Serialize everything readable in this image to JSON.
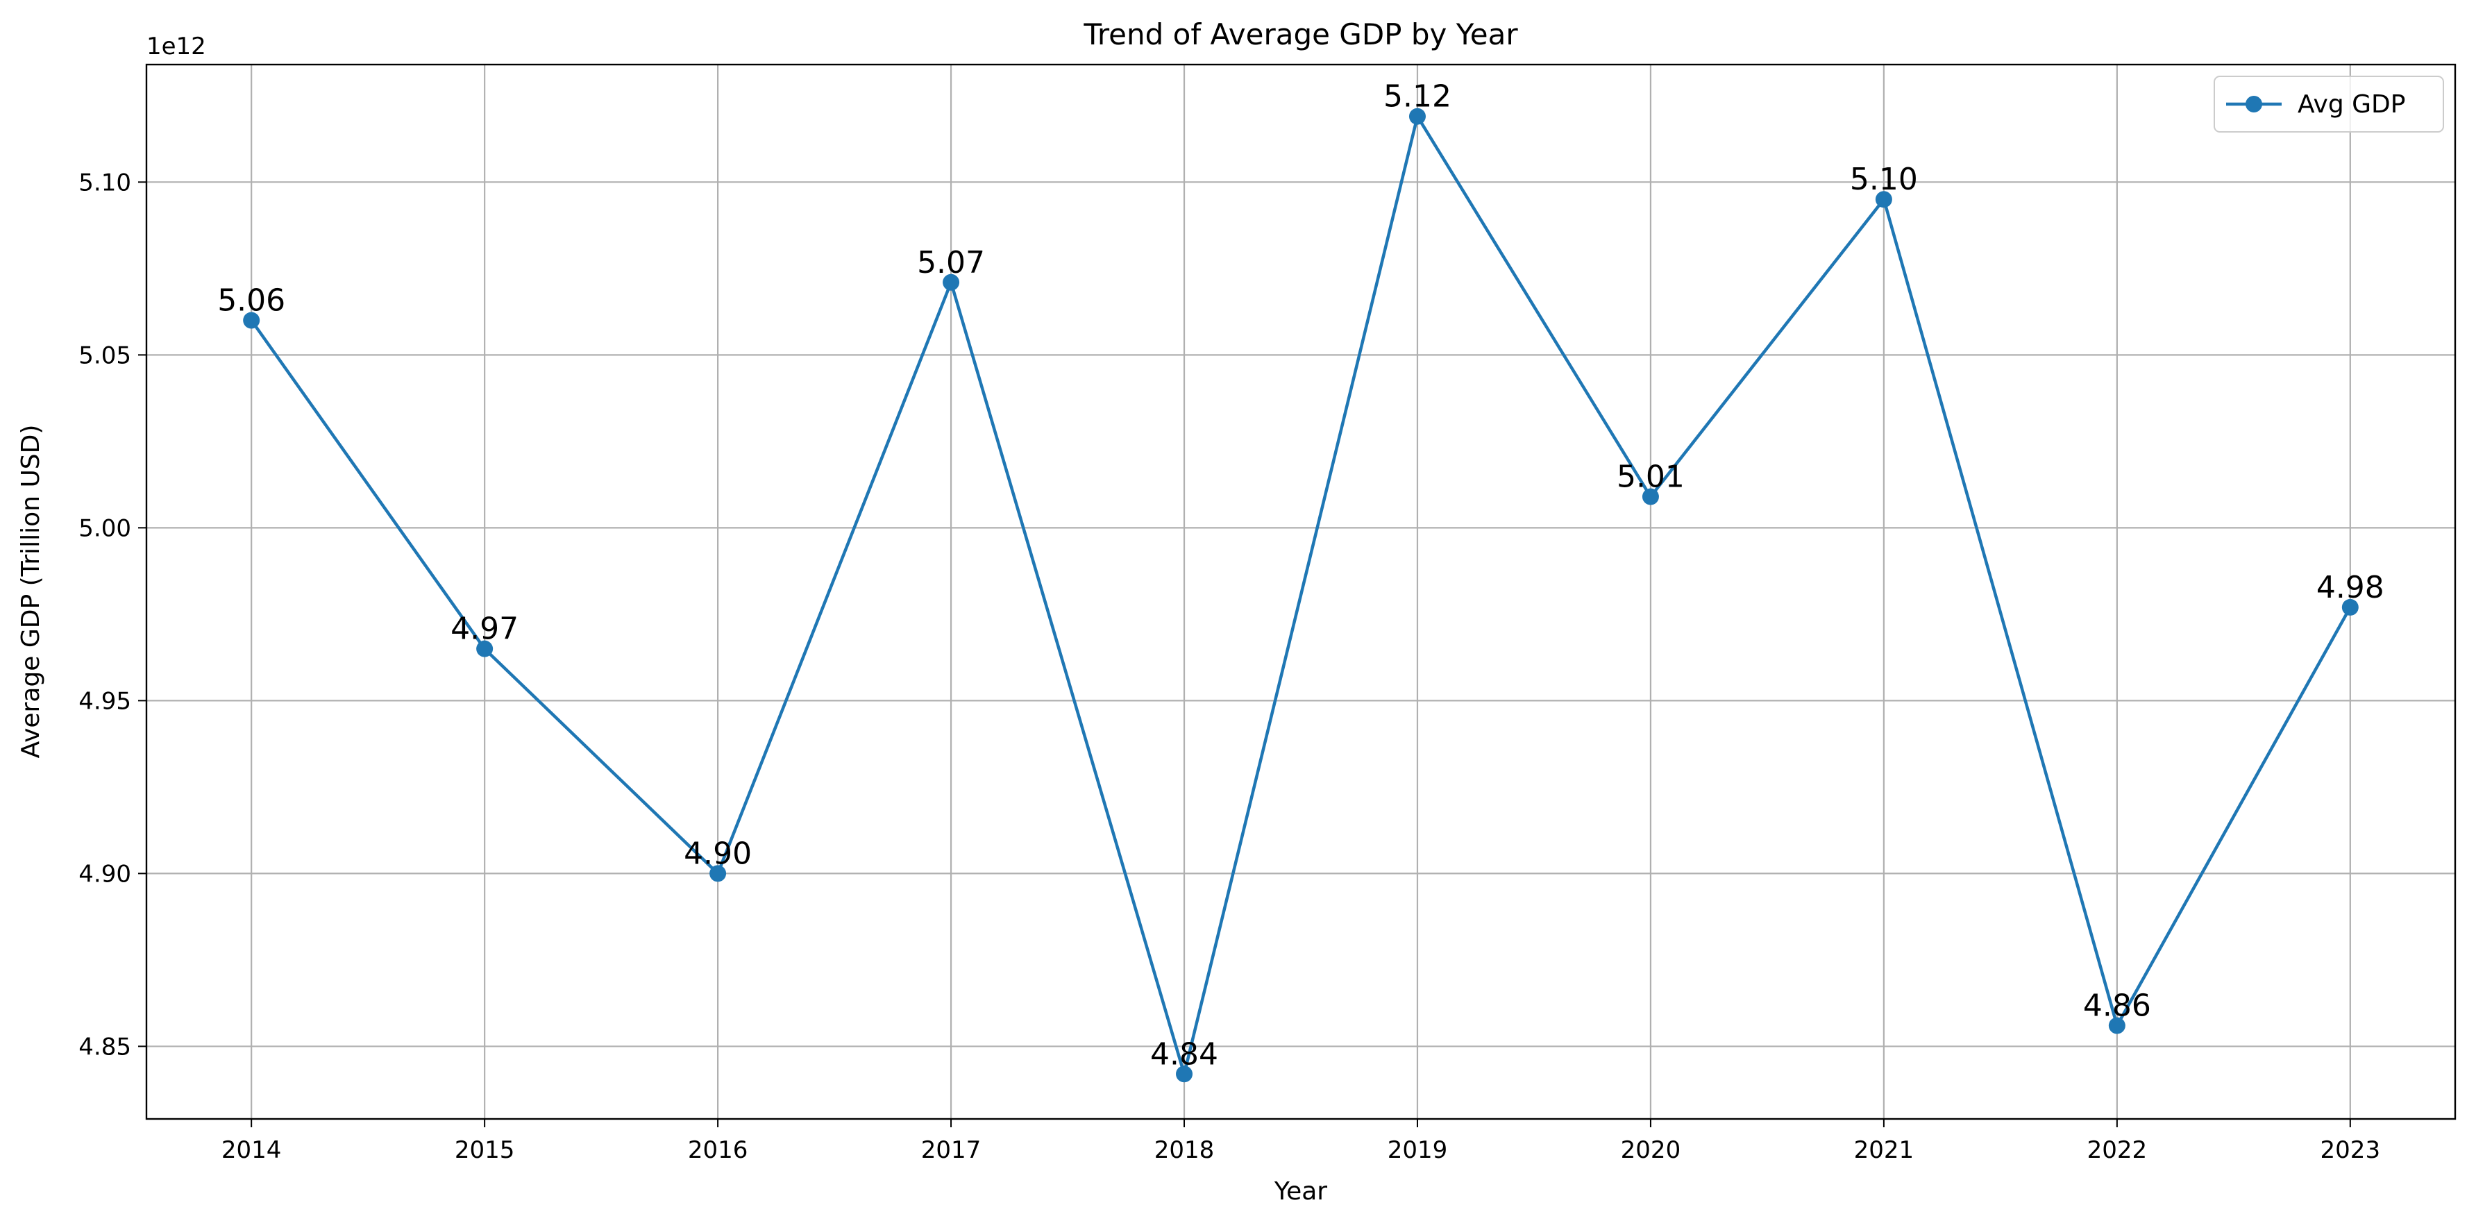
{
  "chart_data": {
    "type": "line",
    "title": "Trend of Average GDP by Year",
    "xlabel": "Year",
    "ylabel": "Average GDP (Trillion USD)",
    "y_offset_text": "1e12",
    "x": [
      2014,
      2015,
      2016,
      2017,
      2018,
      2019,
      2020,
      2021,
      2022,
      2023
    ],
    "x_tick_labels": [
      "2014",
      "2015",
      "2016",
      "2017",
      "2018",
      "2019",
      "2020",
      "2021",
      "2022",
      "2023"
    ],
    "y_ticks": [
      4.85,
      4.9,
      4.95,
      5.0,
      5.05,
      5.1
    ],
    "y_tick_labels": [
      "4.85",
      "4.90",
      "4.95",
      "5.00",
      "5.05",
      "5.10"
    ],
    "ylim": [
      4.829,
      5.134
    ],
    "xlim": [
      2013.55,
      2023.45
    ],
    "series": [
      {
        "name": "Avg GDP",
        "color": "#1f77b4",
        "marker": "circle",
        "values": [
          5.06,
          4.965,
          4.9,
          5.071,
          4.842,
          5.119,
          5.009,
          5.095,
          4.856,
          4.977
        ],
        "data_labels": [
          "5.06",
          "4.97",
          "4.90",
          "5.07",
          "4.84",
          "5.12",
          "5.01",
          "5.10",
          "4.86",
          "4.98"
        ]
      }
    ],
    "grid": true,
    "legend": "upper right"
  }
}
